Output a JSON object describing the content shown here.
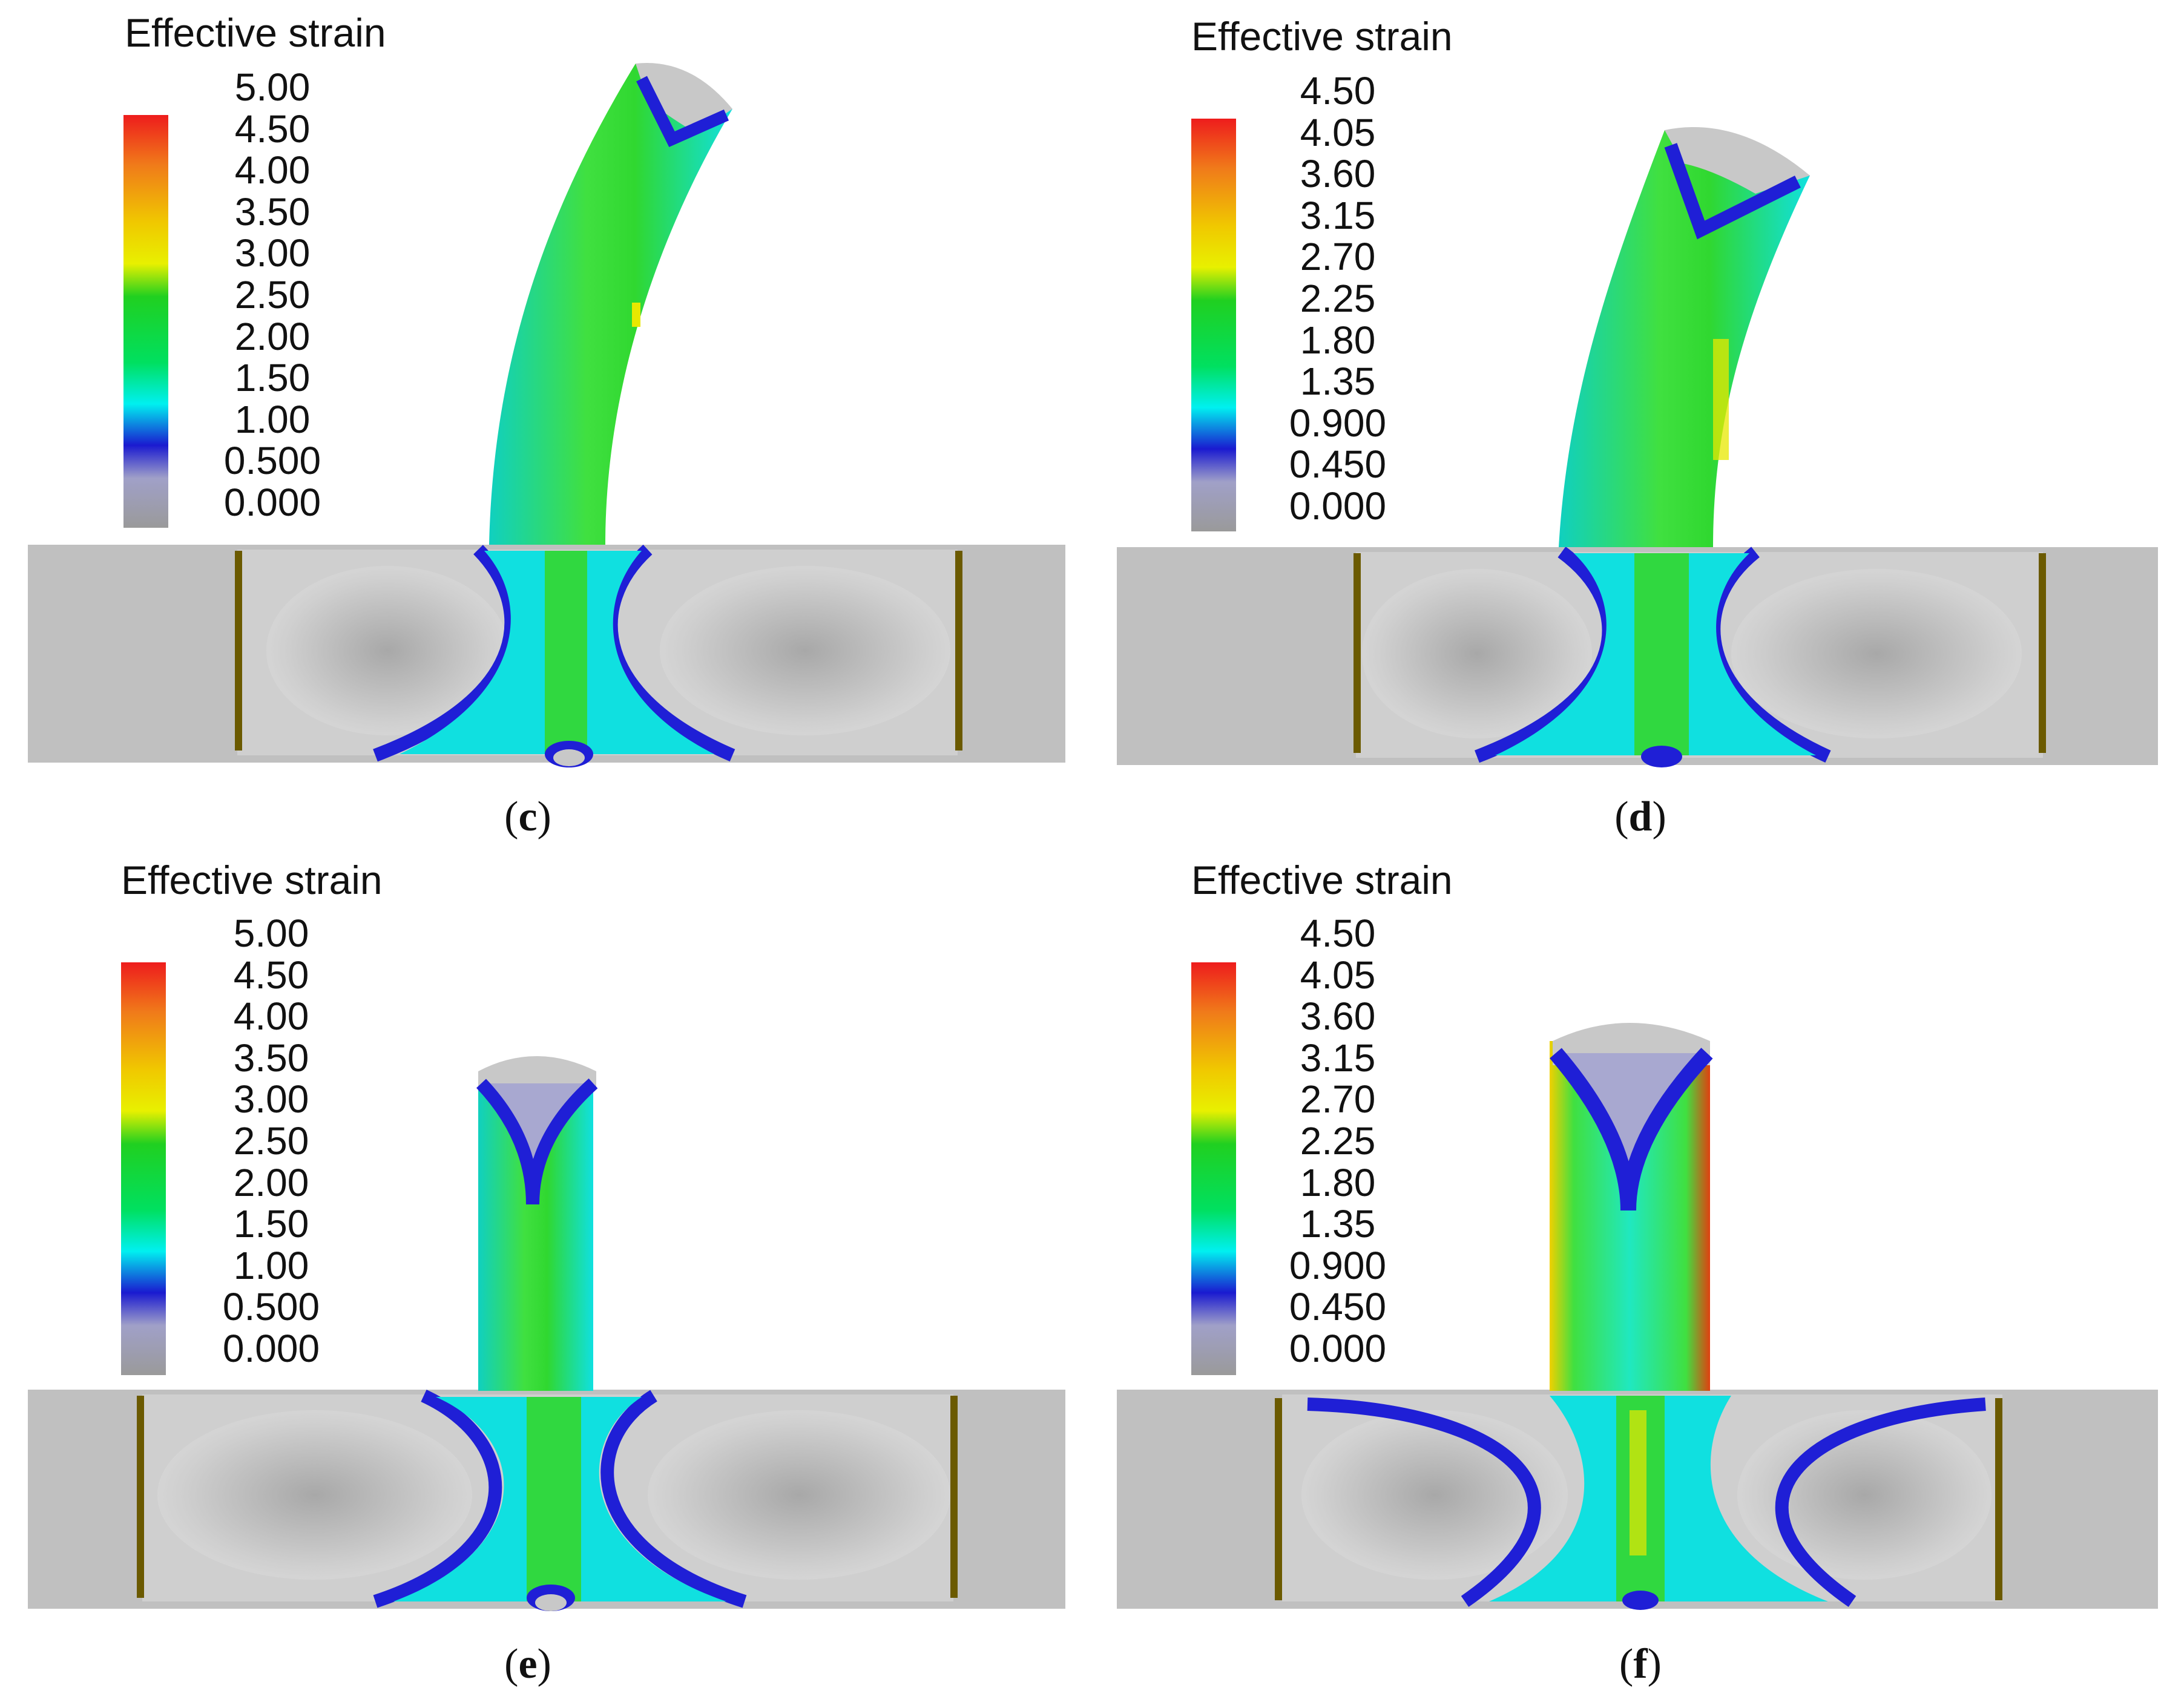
{
  "panels": [
    {
      "id": "c",
      "caption_letter": "c",
      "legend_title": "Effective strain",
      "legend_ticks": [
        "5.00",
        "4.50",
        "4.00",
        "3.50",
        "3.00",
        "2.50",
        "2.00",
        "1.50",
        "1.00",
        "0.500",
        "0.000"
      ],
      "extrusion_shape": "bent-left",
      "colors": {
        "gray": "#c0c0c0",
        "blue": "#1f1fd6",
        "cyan": "#00f0f0",
        "green": "#18d818",
        "yellow": "#f0f000",
        "red": "#ee1c1c",
        "die_line": "#6b5a00"
      }
    },
    {
      "id": "d",
      "caption_letter": "d",
      "legend_title": "Effective strain",
      "legend_ticks": [
        "4.50",
        "4.05",
        "3.60",
        "3.15",
        "2.70",
        "2.25",
        "1.80",
        "1.35",
        "0.900",
        "0.450",
        "0.000"
      ],
      "extrusion_shape": "bent-right",
      "colors": {
        "gray": "#c0c0c0",
        "blue": "#1f1fd6",
        "cyan": "#00f0f0",
        "green": "#18d818",
        "yellow": "#f0f000",
        "red": "#ee1c1c",
        "die_line": "#6b5a00"
      }
    },
    {
      "id": "e",
      "caption_letter": "e",
      "legend_title": "Effective strain",
      "legend_ticks": [
        "5.00",
        "4.50",
        "4.00",
        "3.50",
        "3.00",
        "2.50",
        "2.00",
        "1.50",
        "1.00",
        "0.500",
        "0.000"
      ],
      "extrusion_shape": "straight-narrow",
      "colors": {
        "gray": "#c0c0c0",
        "blue": "#1f1fd6",
        "cyan": "#00f0f0",
        "green": "#18d818",
        "yellow": "#f0f000",
        "red": "#ee1c1c",
        "die_line": "#6b5a00"
      }
    },
    {
      "id": "f",
      "caption_letter": "f",
      "legend_title": "Effective strain",
      "legend_ticks": [
        "4.50",
        "4.05",
        "3.60",
        "3.15",
        "2.70",
        "2.25",
        "1.80",
        "1.35",
        "0.900",
        "0.450",
        "0.000"
      ],
      "extrusion_shape": "straight-wide",
      "colors": {
        "gray": "#c0c0c0",
        "blue": "#1f1fd6",
        "cyan": "#00f0f0",
        "green": "#18d818",
        "yellow": "#f0f000",
        "red": "#ee1c1c",
        "die_line": "#6b5a00"
      }
    }
  ]
}
